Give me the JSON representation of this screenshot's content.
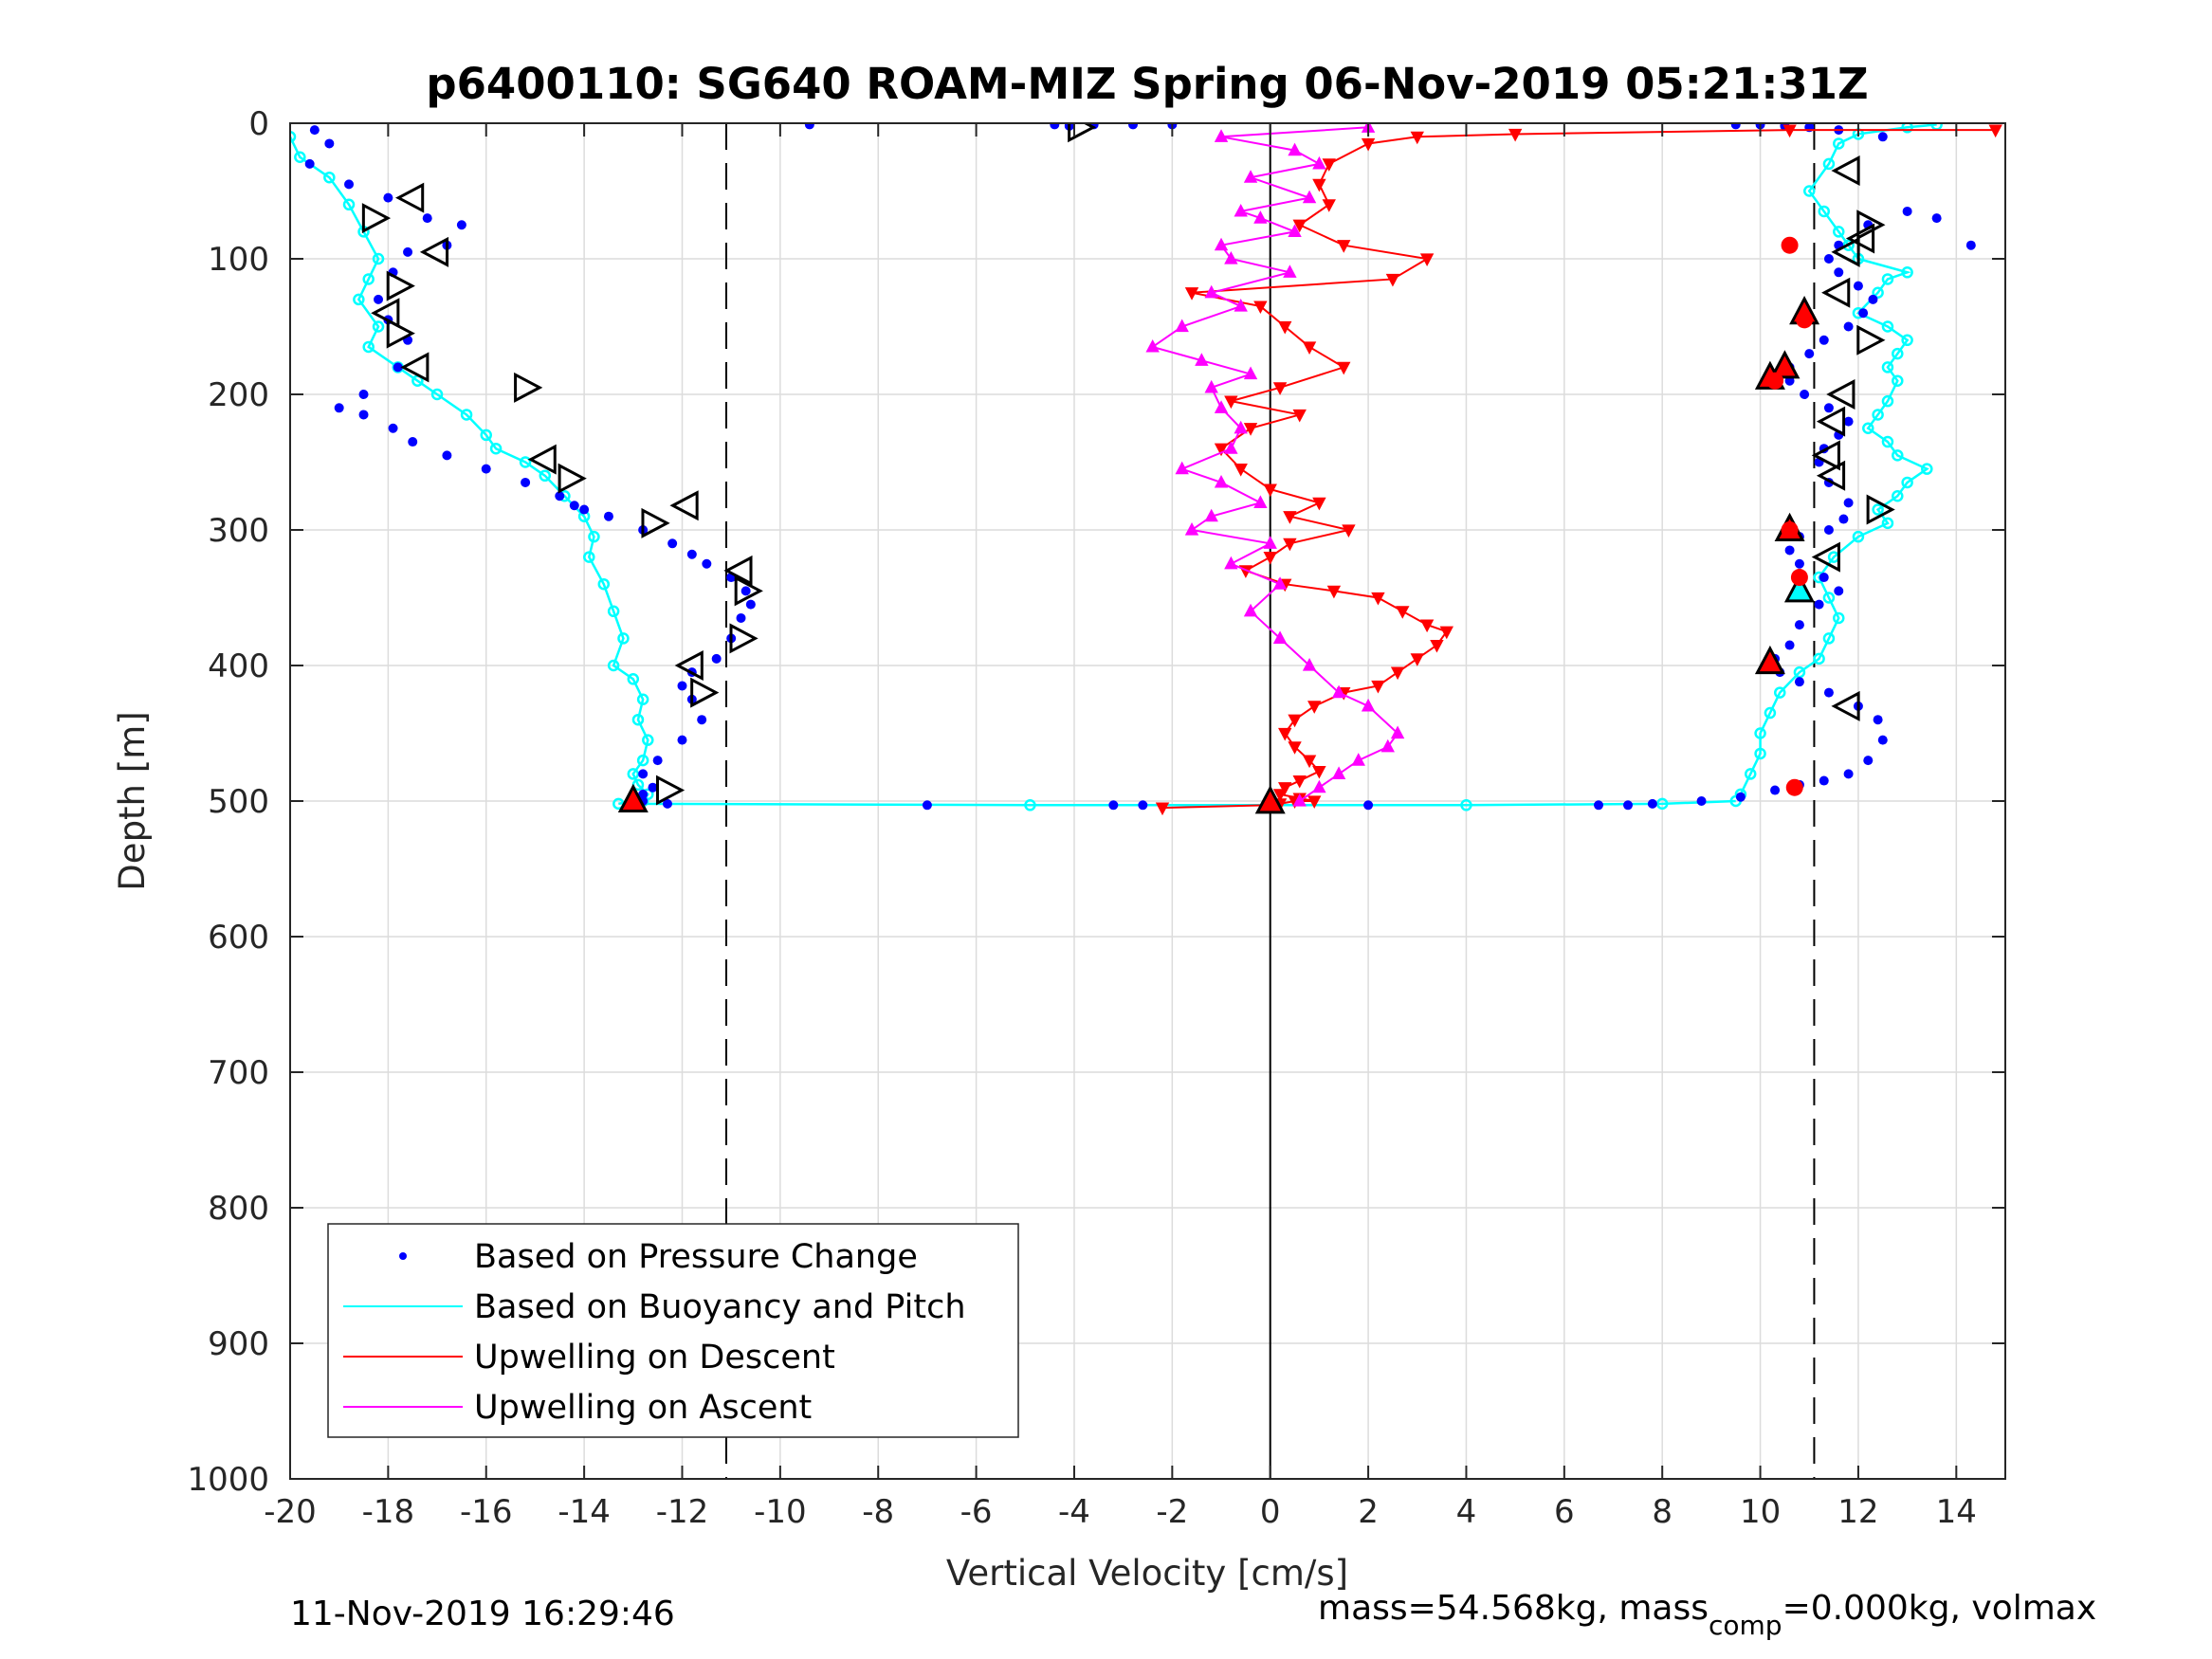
{
  "chart_data": {
    "type": "scatter",
    "title": "p6400110: SG640 ROAM-MIZ Spring 06-Nov-2019 05:21:31Z",
    "xlabel": "Vertical Velocity [cm/s]",
    "ylabel": "Depth [m]",
    "xlim": [
      -20,
      15
    ],
    "ylim": [
      0,
      1000
    ],
    "y_reversed": true,
    "grid": true,
    "xticks": [
      "-20",
      "-18",
      "-16",
      "-14",
      "-12",
      "-10",
      "-8",
      "-6",
      "-4",
      "-2",
      "0",
      "2",
      "4",
      "6",
      "8",
      "10",
      "12",
      "14"
    ],
    "yticks": [
      "0",
      "100",
      "200",
      "300",
      "400",
      "500",
      "600",
      "700",
      "800",
      "900",
      "1000"
    ],
    "legend_position": "bottom-left",
    "vertical_lines": [
      {
        "x": -11.1,
        "style": "dashed"
      },
      {
        "x": 0,
        "style": "solid"
      },
      {
        "x": 11.1,
        "style": "dashed"
      }
    ],
    "series": [
      {
        "name": "Based on Pressure Change",
        "color": "#0000ff",
        "marker": "dot",
        "segments": [
          {
            "x": [
              -19.5,
              -19.2,
              -19.6,
              -18.8,
              -18.0,
              -17.2,
              -16.5,
              -16.8,
              -17.6,
              -17.9,
              -18.2,
              -18.0,
              -17.6,
              -17.8,
              -18.5,
              -19.0,
              -18.5,
              -17.9,
              -17.5,
              -16.8,
              -16.0,
              -15.2,
              -14.5,
              -14.2,
              -14.0,
              -13.5,
              -12.8,
              -12.2,
              -11.8,
              -11.5,
              -11.0,
              -10.7,
              -10.6,
              -10.8,
              -11.0,
              -11.3,
              -11.8,
              -12.0,
              -11.8,
              -11.6,
              -12.0,
              -12.5,
              -12.8,
              -12.6,
              -12.8,
              -13.0,
              -12.8,
              -12.3
            ],
            "y": [
              5,
              15,
              30,
              45,
              55,
              70,
              75,
              90,
              95,
              110,
              130,
              145,
              160,
              180,
              200,
              210,
              215,
              225,
              235,
              245,
              255,
              265,
              275,
              282,
              285,
              290,
              300,
              310,
              318,
              325,
              335,
              345,
              355,
              365,
              380,
              395,
              405,
              415,
              425,
              440,
              455,
              470,
              480,
              490,
              495,
              500,
              500,
              502
            ]
          },
          {
            "x": [
              -9.4,
              -4.4,
              -4.1,
              -3.6,
              -2.8,
              -2.0
            ],
            "y": [
              1,
              1,
              2,
              1,
              1,
              1
            ]
          },
          {
            "x": [
              -7.0,
              -3.2,
              -2.6
            ],
            "y": [
              503,
              503,
              503
            ]
          },
          {
            "x": [
              2.0,
              6.7,
              7.3,
              7.8,
              8.8,
              9.6,
              10.3,
              10.8,
              11.3,
              11.8,
              12.2,
              12.5,
              12.4,
              12.0,
              11.4,
              10.8,
              10.4,
              10.3,
              10.6,
              10.8,
              11.2,
              11.6,
              11.3,
              10.8,
              10.6,
              10.8,
              11.4,
              11.7,
              11.8,
              11.4,
              11.2,
              11.3,
              11.6,
              11.8,
              11.4,
              10.9,
              10.6,
              10.3,
              10.6,
              11.0,
              11.3,
              11.8,
              12.1,
              12.3,
              12.0,
              11.6,
              11.4,
              11.6,
              12.2,
              13.0,
              13.6,
              14.3,
              12.5,
              11.6,
              11.0,
              10.5,
              10.0,
              9.5
            ],
            "y": [
              503,
              503,
              503,
              502,
              500,
              497,
              492,
              488,
              485,
              480,
              470,
              455,
              440,
              430,
              420,
              412,
              405,
              395,
              385,
              370,
              355,
              345,
              335,
              325,
              315,
              305,
              300,
              292,
              280,
              265,
              250,
              240,
              230,
              220,
              210,
              200,
              190,
              185,
              180,
              170,
              160,
              150,
              140,
              130,
              120,
              110,
              100,
              90,
              75,
              65,
              70,
              90,
              10,
              5,
              3,
              2,
              1,
              1
            ]
          },
          {
            "x": [
              10.6,
              10.9,
              10.3,
              10.6,
              10.8,
              10.7
            ],
            "y": [
              90,
              145,
              190,
              300,
              335,
              490
            ]
          }
        ]
      },
      {
        "name": "Based on Buoyancy and Pitch",
        "color": "#00ffff",
        "marker": "circle-line",
        "segments": [
          {
            "x": [
              -20.0,
              -19.8,
              -19.2,
              -18.8,
              -18.5,
              -18.2,
              -18.4,
              -18.6,
              -18.2,
              -18.4,
              -17.8,
              -17.4,
              -17.0,
              -16.4,
              -16.0,
              -15.8,
              -15.2,
              -14.8,
              -14.4,
              -14.0,
              -13.8,
              -13.9,
              -13.6,
              -13.4,
              -13.2,
              -13.4,
              -13.0,
              -12.8,
              -12.9,
              -12.7,
              -12.8,
              -13.0,
              -12.9,
              -12.7,
              -12.8,
              -13.0,
              -13.3
            ],
            "y": [
              10,
              25,
              40,
              60,
              80,
              100,
              115,
              130,
              150,
              165,
              180,
              190,
              200,
              215,
              230,
              240,
              250,
              260,
              275,
              290,
              305,
              320,
              340,
              360,
              380,
              400,
              410,
              425,
              440,
              455,
              470,
              480,
              488,
              495,
              500,
              500,
              502
            ]
          },
          {
            "x": [
              -13.0,
              -4.9,
              0.0,
              4.0,
              8.0,
              9.5
            ],
            "y": [
              502,
              503,
              503,
              503,
              502,
              500
            ]
          },
          {
            "x": [
              9.6,
              9.8,
              10.0,
              10.0,
              10.2,
              10.4,
              10.8,
              11.2,
              11.4,
              11.6,
              11.4,
              11.2,
              11.5,
              12.0,
              12.6,
              12.4,
              12.8,
              13.0,
              13.4,
              12.8,
              12.6,
              12.2,
              12.4,
              12.6,
              12.8,
              12.6,
              12.8,
              13.0,
              12.6,
              12.0,
              12.4,
              12.6,
              13.0,
              12.0,
              11.8,
              11.6,
              11.3,
              11.0,
              11.4,
              11.6,
              12.0,
              13.0,
              13.6
            ],
            "y": [
              495,
              480,
              465,
              450,
              435,
              420,
              405,
              395,
              380,
              365,
              350,
              335,
              320,
              305,
              295,
              285,
              275,
              265,
              255,
              245,
              235,
              225,
              215,
              205,
              190,
              180,
              170,
              160,
              150,
              140,
              125,
              115,
              110,
              100,
              90,
              80,
              65,
              50,
              30,
              15,
              8,
              3,
              1
            ]
          }
        ]
      },
      {
        "name": "Upwelling on Descent",
        "color": "#ff0000",
        "marker": "triangle-down",
        "points": {
          "x": [
            14.8,
            10.6,
            5.0,
            3.0,
            2.0,
            1.2,
            1.0,
            1.2,
            0.6,
            1.5,
            3.2,
            2.5,
            -1.6,
            -0.2,
            0.3,
            0.8,
            1.5,
            0.2,
            -0.8,
            0.6,
            -0.4,
            -1.0,
            -0.6,
            0.0,
            1.0,
            0.4,
            1.6,
            0.4,
            0.0,
            -0.5,
            0.3,
            1.3,
            2.2,
            2.7,
            3.2,
            3.6,
            3.4,
            3.0,
            2.6,
            2.2,
            1.5,
            0.9,
            0.5,
            0.3,
            0.5,
            0.8,
            1.0,
            0.6,
            0.3,
            0.2,
            0.6,
            0.9,
            0.5,
            0.2,
            0.0,
            -2.2
          ],
          "y": [
            5,
            5,
            8,
            10,
            15,
            30,
            45,
            60,
            75,
            90,
            100,
            115,
            125,
            135,
            150,
            165,
            180,
            195,
            205,
            215,
            225,
            240,
            255,
            270,
            280,
            290,
            300,
            310,
            320,
            330,
            340,
            345,
            350,
            360,
            370,
            375,
            385,
            395,
            405,
            415,
            420,
            430,
            440,
            450,
            460,
            470,
            478,
            485,
            490,
            495,
            498,
            500,
            500,
            502,
            503,
            505
          ]
        }
      },
      {
        "name": "Upwelling on Ascent",
        "color": "#ff00ff",
        "marker": "triangle-up",
        "points": {
          "x": [
            2.0,
            -1.0,
            0.5,
            1.0,
            -0.4,
            0.8,
            -0.6,
            -0.2,
            0.5,
            -1.0,
            -0.8,
            0.4,
            -1.2,
            -0.6,
            -1.8,
            -2.4,
            -1.4,
            -0.4,
            -1.2,
            -1.0,
            -0.6,
            -0.8,
            -1.8,
            -1.0,
            -0.2,
            -1.2,
            -1.6,
            0.0,
            -0.8,
            0.2,
            -0.4,
            0.2,
            0.8,
            1.4,
            2.0,
            2.6,
            2.4,
            1.8,
            1.4,
            1.0,
            0.6
          ],
          "y": [
            3,
            10,
            20,
            30,
            40,
            55,
            65,
            70,
            80,
            90,
            100,
            110,
            125,
            135,
            150,
            165,
            175,
            185,
            195,
            210,
            225,
            240,
            255,
            265,
            280,
            290,
            300,
            310,
            325,
            340,
            360,
            380,
            400,
            420,
            430,
            450,
            460,
            470,
            480,
            490,
            500
          ]
        }
      }
    ],
    "markers": [
      {
        "kind": "open-triangle-right",
        "x": -3.9,
        "y": 3
      },
      {
        "kind": "open-triangle-left",
        "x": -17.5,
        "y": 55
      },
      {
        "kind": "open-triangle-right",
        "x": -18.3,
        "y": 70
      },
      {
        "kind": "open-triangle-left",
        "x": -17.0,
        "y": 95
      },
      {
        "kind": "open-triangle-right",
        "x": -17.8,
        "y": 120
      },
      {
        "kind": "open-triangle-left",
        "x": -18.0,
        "y": 140
      },
      {
        "kind": "open-triangle-right",
        "x": -17.8,
        "y": 155
      },
      {
        "kind": "open-triangle-left",
        "x": -17.4,
        "y": 180
      },
      {
        "kind": "open-triangle-right",
        "x": -15.2,
        "y": 195
      },
      {
        "kind": "open-triangle-left",
        "x": -14.8,
        "y": 248
      },
      {
        "kind": "open-triangle-right",
        "x": -14.3,
        "y": 262
      },
      {
        "kind": "open-triangle-left",
        "x": -11.9,
        "y": 282
      },
      {
        "kind": "open-triangle-right",
        "x": -12.6,
        "y": 295
      },
      {
        "kind": "open-triangle-left",
        "x": -10.8,
        "y": 330
      },
      {
        "kind": "open-triangle-right",
        "x": -10.7,
        "y": 345
      },
      {
        "kind": "open-triangle-right",
        "x": -10.8,
        "y": 380
      },
      {
        "kind": "open-triangle-left",
        "x": -11.8,
        "y": 400
      },
      {
        "kind": "open-triangle-right",
        "x": -11.6,
        "y": 420
      },
      {
        "kind": "open-triangle-right",
        "x": -12.3,
        "y": 492
      },
      {
        "kind": "filled-triangle-up",
        "x": -13.0,
        "y": 500
      },
      {
        "kind": "filled-triangle-up",
        "x": 0.0,
        "y": 501
      },
      {
        "kind": "open-triangle-left",
        "x": 11.8,
        "y": 35
      },
      {
        "kind": "open-triangle-right",
        "x": 12.2,
        "y": 75
      },
      {
        "kind": "open-triangle-left",
        "x": 12.1,
        "y": 85
      },
      {
        "kind": "open-triangle-left",
        "x": 11.8,
        "y": 95
      },
      {
        "kind": "open-triangle-left",
        "x": 11.6,
        "y": 125
      },
      {
        "kind": "filled-triangle-up",
        "x": 10.9,
        "y": 140
      },
      {
        "kind": "open-triangle-right",
        "x": 12.2,
        "y": 160
      },
      {
        "kind": "filled-triangle-up",
        "x": 10.5,
        "y": 180
      },
      {
        "kind": "filled-triangle-up",
        "x": 10.2,
        "y": 188
      },
      {
        "kind": "open-triangle-left",
        "x": 11.7,
        "y": 200
      },
      {
        "kind": "open-triangle-left",
        "x": 11.5,
        "y": 220
      },
      {
        "kind": "open-triangle-left",
        "x": 11.4,
        "y": 245
      },
      {
        "kind": "open-triangle-left",
        "x": 11.5,
        "y": 260
      },
      {
        "kind": "open-triangle-right",
        "x": 12.4,
        "y": 285
      },
      {
        "kind": "filled-triangle-up",
        "x": 10.6,
        "y": 300
      },
      {
        "kind": "open-triangle-left",
        "x": 11.4,
        "y": 320
      },
      {
        "kind": "cyan-triangle-up",
        "x": 10.8,
        "y": 345
      },
      {
        "kind": "filled-triangle-up",
        "x": 10.2,
        "y": 398
      },
      {
        "kind": "open-triangle-left",
        "x": 11.8,
        "y": 430
      }
    ]
  },
  "footer": {
    "timestamp": "11-Nov-2019 16:29:46",
    "mass_prefix": "mass=54.568kg, mass",
    "mass_subscript": "comp",
    "mass_suffix": "=0.000kg, volmax"
  }
}
